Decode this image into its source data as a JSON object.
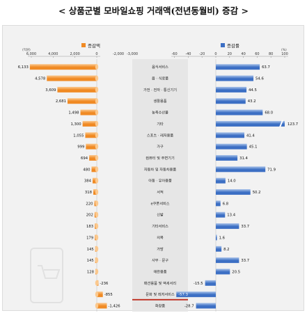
{
  "title": "< 상품군별 모바일쇼핑 거래액(전년동월비) 증감 >",
  "colors": {
    "left_bar": "#f08a24",
    "left_bar_light": "#fbc98f",
    "right_bar": "#3c6fc4",
    "right_bar_light": "#a9c3ea",
    "center_band": "#e6e6e6",
    "red_line": "#c0392b"
  },
  "chart_data": [
    {
      "type": "bar",
      "orientation": "horizontal",
      "legend": "증감액",
      "unit": "(억원)",
      "xlim": [
        -6000,
        0
      ],
      "x_direction": "reversed",
      "ticks": [
        6000,
        4000,
        2000,
        0
      ],
      "tick_labels": [
        "6,000",
        "4,000",
        "2,000",
        "0"
      ],
      "categories": [
        "음식서비스",
        "음 · 식료품",
        "가전 · 전자 · 통신기기",
        "생활용품",
        "농축수산물",
        "기타",
        "스포츠 · 레저용품",
        "가구",
        "컴퓨터 및 주변기기",
        "자동차 및 자동차용품",
        "아동 · 유아용품",
        "서적",
        "e쿠폰서비스",
        "신발",
        "기타서비스",
        "의복",
        "가방",
        "사무 · 문구",
        "애완용품",
        "패션용품 및 액세서리",
        "문화 및 레저서비스",
        "화장품",
        "여행 및 교통서비스"
      ],
      "values": [
        6133,
        4578,
        3609,
        2681,
        1498,
        1300,
        1055,
        999,
        694,
        480,
        384,
        318,
        220,
        202,
        183,
        179,
        145,
        145,
        128,
        -236,
        -855,
        -1426,
        -3497
      ],
      "data_labels": [
        "6,133",
        "4,578",
        "3,609",
        "2,681",
        "1,498",
        "1,300",
        "1,055",
        "999",
        "694",
        "480",
        "384",
        "318",
        "220",
        "202",
        "183",
        "179",
        "145",
        "145",
        "128",
        "-236",
        "-855",
        "-1,426",
        "-3,497"
      ]
    },
    {
      "type": "bar",
      "orientation": "horizontal",
      "legend": "증감률",
      "unit": "(%)",
      "xlim": [
        -60,
        100
      ],
      "ticks": [
        -60,
        -40,
        -20,
        0,
        20,
        40,
        60,
        80,
        100
      ],
      "tick_labels": [
        "-60",
        "-40",
        "-20",
        "0",
        "20",
        "40",
        "60",
        "80",
        "100"
      ],
      "categories": [
        "음식서비스",
        "음 · 식료품",
        "가전 · 전자 · 통신기기",
        "생활용품",
        "농축수산물",
        "기타",
        "스포츠 · 레저용품",
        "가구",
        "컴퓨터 및 주변기기",
        "자동차 및 자동차용품",
        "아동 · 유아용품",
        "서적",
        "e쿠폰서비스",
        "신발",
        "기타서비스",
        "의복",
        "가방",
        "사무 · 문구",
        "애완용품",
        "패션용품 및 액세서리",
        "문화 및 레저서비스",
        "화장품",
        "여행 및 교통서비스"
      ],
      "values": [
        63.7,
        54.6,
        44.5,
        43.2,
        68.0,
        123.7,
        41.4,
        45.1,
        31.4,
        71.9,
        14.0,
        50.2,
        6.8,
        13.4,
        33.7,
        1.6,
        8.2,
        33.7,
        20.5,
        -15.5,
        -57.3,
        -28.7,
        -39.5
      ],
      "data_labels": [
        "63.7",
        "54.6",
        "44.5",
        "43.2",
        "68.0",
        "123.7",
        "41.4",
        "45.1",
        "31.4",
        "71.9",
        "14.0",
        "50.2",
        "6.8",
        "13.4",
        "33.7",
        "1.6",
        "8.2",
        "33.7",
        "20.5",
        "-15.5",
        "-57.3",
        "-28.7",
        "-39.5"
      ]
    },
    {
      "type": "axis",
      "note_ticks": [
        -2000,
        -3000
      ],
      "tick_labels": [
        "-2,000",
        "-3,000"
      ]
    }
  ]
}
